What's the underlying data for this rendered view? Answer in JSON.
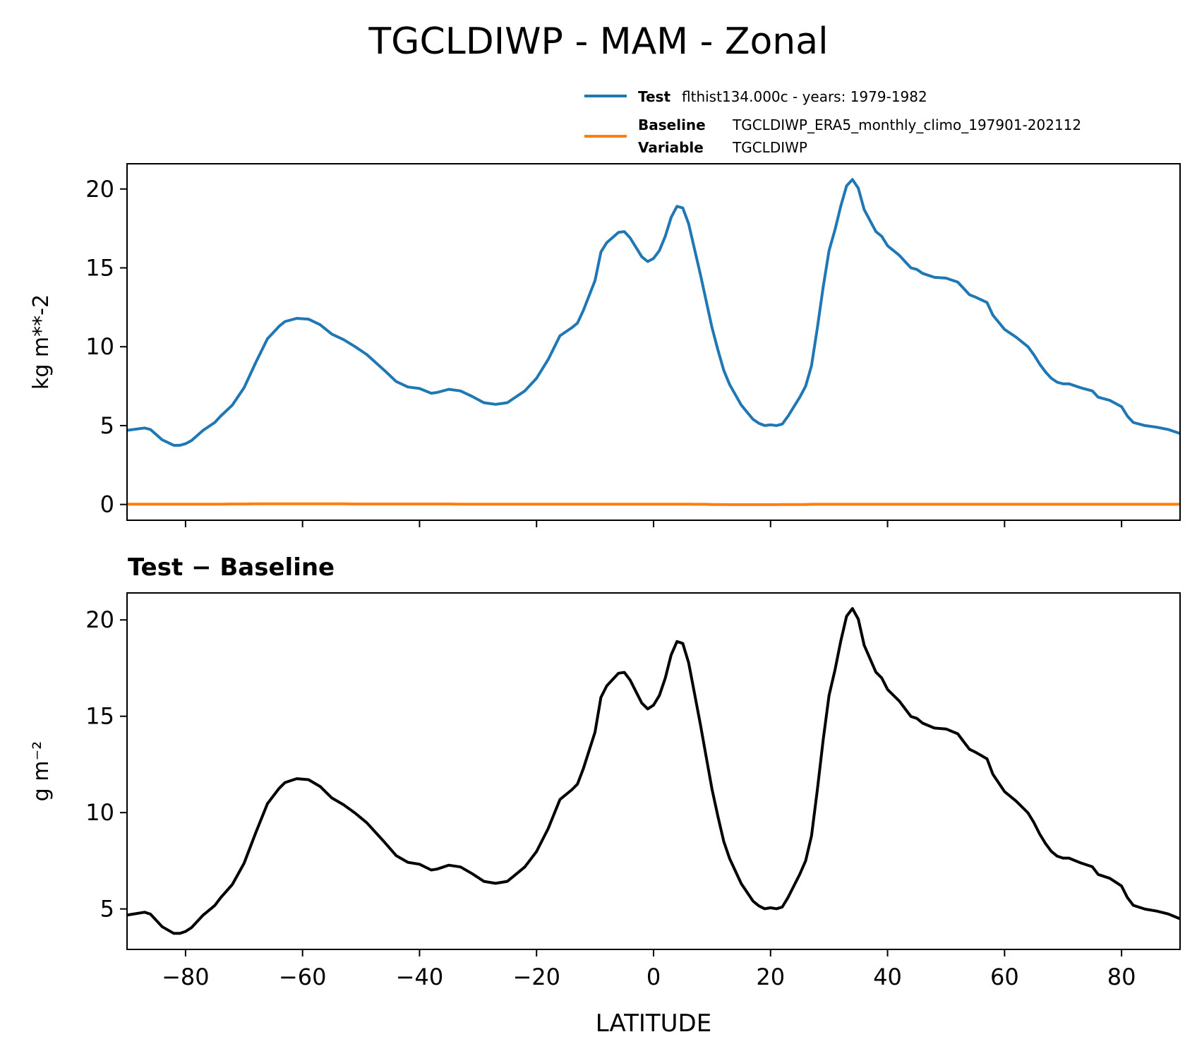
{
  "title": "TGCLDIWP - MAM - Zonal",
  "legend": {
    "test_key": "Test",
    "test_value": "flthist134.000c - years: 1979-1982",
    "baseline_key": "Baseline",
    "baseline_value": "TGCLDIWP_ERA5_monthly_climo_197901-202112",
    "variable_key": "Variable",
    "variable_value": "TGCLDIWP"
  },
  "colors": {
    "test": "#1f77b4",
    "baseline": "#ff7f0e",
    "diff": "#000000"
  },
  "chart_data": [
    {
      "type": "line",
      "title": "",
      "xlabel": "",
      "ylabel": "kg m**-2",
      "xlim": [
        -90,
        90
      ],
      "ylim": [
        -1,
        21.6
      ],
      "yticks": [
        0,
        5,
        10,
        15,
        20
      ],
      "xticks": [
        -80,
        -60,
        -40,
        -20,
        0,
        20,
        40,
        60,
        80
      ],
      "x": [
        -90,
        -87,
        -86,
        -84,
        -82,
        -81,
        -80,
        -79,
        -77,
        -75,
        -74,
        -72,
        -70,
        -68,
        -66,
        -64,
        -63,
        -61,
        -59,
        -57,
        -55,
        -53,
        -51,
        -49,
        -46,
        -44,
        -42,
        -40,
        -38,
        -37,
        -35,
        -33,
        -31,
        -29,
        -27,
        -25,
        -24,
        -22,
        -20,
        -18,
        -16,
        -14,
        -13,
        -12,
        -10,
        -9,
        -8,
        -6,
        -5,
        -4,
        -3,
        -2,
        -1,
        0,
        1,
        2,
        3,
        4,
        5,
        6,
        7,
        8,
        9,
        10,
        11,
        12,
        13,
        15,
        17,
        18,
        19,
        20,
        21,
        22,
        23,
        24,
        25,
        26,
        27,
        28,
        29,
        30,
        31,
        32,
        33,
        34,
        35,
        36,
        37,
        38,
        39,
        40,
        42,
        44,
        45,
        46,
        48,
        50,
        52,
        53,
        54,
        55,
        57,
        58,
        60,
        62,
        64,
        65,
        66,
        67,
        68,
        69,
        70,
        71,
        73,
        75,
        76,
        78,
        79,
        80,
        81,
        82,
        84,
        86,
        88,
        90
      ],
      "series": [
        {
          "name": "Test",
          "values": [
            4.7,
            4.85,
            4.75,
            4.1,
            3.75,
            3.75,
            3.85,
            4.05,
            4.7,
            5.2,
            5.6,
            6.3,
            7.4,
            9.0,
            10.5,
            11.3,
            11.6,
            11.8,
            11.75,
            11.4,
            10.8,
            10.45,
            10.0,
            9.5,
            8.5,
            7.8,
            7.45,
            7.35,
            7.05,
            7.1,
            7.3,
            7.2,
            6.85,
            6.45,
            6.35,
            6.45,
            6.7,
            7.2,
            8.0,
            9.2,
            10.7,
            11.2,
            11.5,
            12.3,
            14.2,
            16.0,
            16.6,
            17.25,
            17.3,
            16.9,
            16.3,
            15.7,
            15.4,
            15.6,
            16.1,
            17.0,
            18.2,
            18.9,
            18.8,
            17.8,
            16.2,
            14.6,
            12.9,
            11.2,
            9.8,
            8.5,
            7.6,
            6.3,
            5.4,
            5.15,
            5.0,
            5.05,
            5.0,
            5.1,
            5.6,
            6.2,
            6.8,
            7.5,
            8.8,
            11.2,
            13.8,
            16.1,
            17.4,
            18.9,
            20.2,
            20.6,
            20.05,
            18.7,
            18.0,
            17.3,
            17.0,
            16.4,
            15.8,
            15.0,
            14.9,
            14.65,
            14.4,
            14.35,
            14.1,
            13.7,
            13.3,
            13.15,
            12.8,
            12.0,
            11.1,
            10.6,
            10.0,
            9.5,
            8.9,
            8.4,
            8.0,
            7.75,
            7.65,
            7.65,
            7.4,
            7.2,
            6.8,
            6.6,
            6.4,
            6.2,
            5.6,
            5.2,
            5.0,
            4.9,
            4.75,
            4.5
          ]
        },
        {
          "name": "Baseline",
          "values": [
            0.02,
            0.02,
            0.02,
            0.02,
            0.02,
            0.02,
            0.02,
            0.02,
            0.02,
            0.02,
            0.02,
            0.03,
            0.03,
            0.04,
            0.04,
            0.04,
            0.04,
            0.04,
            0.04,
            0.04,
            0.04,
            0.04,
            0.03,
            0.03,
            0.03,
            0.03,
            0.03,
            0.03,
            0.03,
            0.03,
            0.03,
            0.02,
            0.02,
            0.02,
            0.02,
            0.02,
            0.02,
            0.02,
            0.02,
            0.02,
            0.02,
            0.02,
            0.02,
            0.02,
            0.02,
            0.02,
            0.02,
            0.02,
            0.02,
            0.02,
            0.02,
            0.02,
            0.02,
            0.02,
            0.02,
            0.02,
            0.02,
            0.02,
            0.02,
            0.02,
            0.01,
            0.01,
            0.01,
            0.0,
            0.0,
            0.0,
            -0.01,
            -0.01,
            -0.01,
            -0.01,
            -0.01,
            -0.01,
            -0.01,
            0.0,
            0.0,
            0.0,
            0.0,
            0.0,
            0.01,
            0.01,
            0.01,
            0.01,
            0.01,
            0.01,
            0.01,
            0.01,
            0.01,
            0.01,
            0.01,
            0.01,
            0.01,
            0.01,
            0.01,
            0.01,
            0.01,
            0.01,
            0.01,
            0.01,
            0.01,
            0.01,
            0.01,
            0.01,
            0.01,
            0.01,
            0.01,
            0.01,
            0.01,
            0.01,
            0.01,
            0.01,
            0.01,
            0.01,
            0.01,
            0.01,
            0.01,
            0.01,
            0.01,
            0.01,
            0.01,
            0.01,
            0.01,
            0.01,
            0.01,
            0.01,
            0.01,
            0.01
          ]
        }
      ]
    },
    {
      "type": "line",
      "title": "Test − Baseline",
      "xlabel": "LATITUDE",
      "ylabel": "g m⁻²",
      "xlim": [
        -90,
        90
      ],
      "ylim": [
        2.9,
        21.4
      ],
      "yticks": [
        5,
        10,
        15,
        20
      ],
      "xticks": [
        -80,
        -60,
        -40,
        -20,
        0,
        20,
        40,
        60,
        80
      ],
      "xticklabels": [
        "−80",
        "−60",
        "−40",
        "−20",
        "0",
        "20",
        "40",
        "60",
        "80"
      ],
      "series": [
        {
          "name": "",
          "values": [
            4.68,
            4.83,
            4.73,
            4.08,
            3.73,
            3.73,
            3.83,
            4.03,
            4.68,
            5.18,
            5.58,
            6.27,
            7.37,
            8.96,
            10.46,
            11.26,
            11.56,
            11.76,
            11.71,
            11.36,
            10.76,
            10.41,
            9.97,
            9.47,
            8.47,
            7.77,
            7.42,
            7.32,
            7.02,
            7.07,
            7.27,
            7.18,
            6.83,
            6.43,
            6.33,
            6.43,
            6.68,
            7.18,
            7.98,
            9.18,
            10.68,
            11.18,
            11.48,
            12.28,
            14.18,
            15.98,
            16.58,
            17.23,
            17.28,
            16.88,
            16.28,
            15.68,
            15.38,
            15.58,
            16.08,
            16.98,
            18.18,
            18.88,
            18.78,
            17.78,
            16.19,
            14.59,
            12.89,
            11.2,
            9.8,
            8.5,
            7.61,
            6.31,
            5.41,
            5.16,
            5.01,
            5.06,
            5.01,
            5.1,
            5.6,
            6.2,
            6.8,
            7.5,
            8.79,
            11.19,
            13.79,
            16.09,
            17.39,
            18.89,
            20.19,
            20.59,
            20.04,
            18.69,
            17.99,
            17.29,
            16.99,
            16.39,
            15.79,
            14.99,
            14.89,
            14.64,
            14.39,
            14.34,
            14.09,
            13.69,
            13.29,
            13.14,
            12.79,
            11.99,
            11.09,
            10.59,
            9.99,
            9.49,
            8.89,
            8.39,
            7.99,
            7.74,
            7.64,
            7.64,
            7.39,
            7.19,
            6.79,
            6.59,
            6.39,
            6.19,
            5.59,
            5.19,
            4.99,
            4.89,
            4.74,
            4.49
          ]
        }
      ]
    }
  ]
}
